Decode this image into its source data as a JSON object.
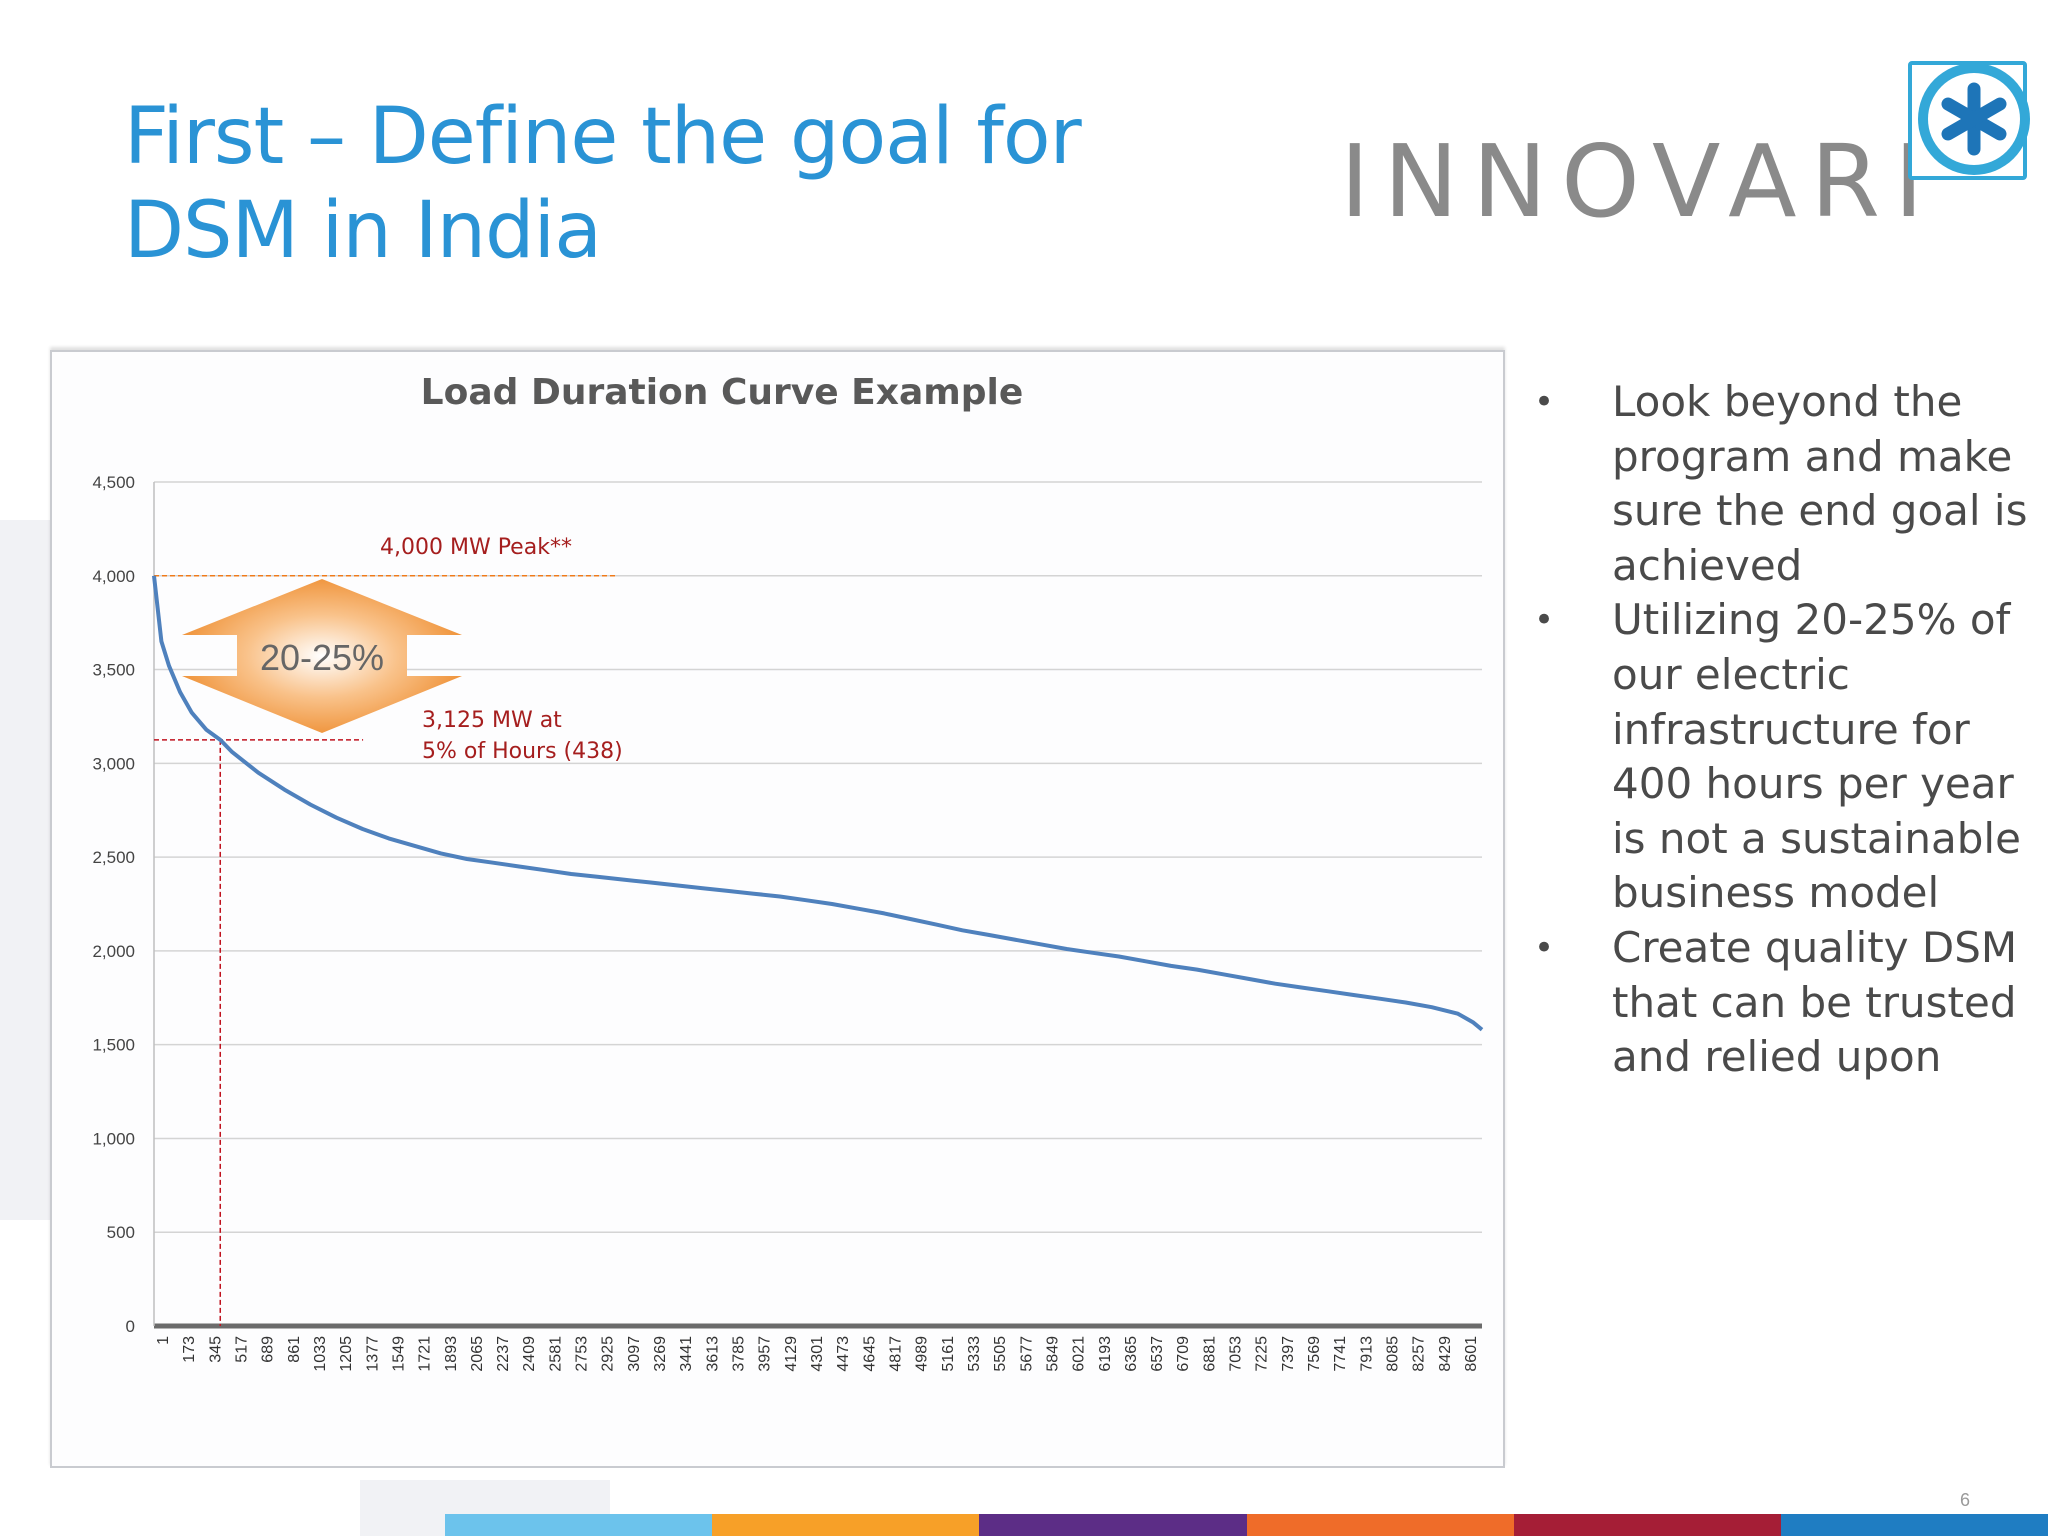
{
  "slide": {
    "title_lines": [
      "First – Define the goal for",
      "DSM in India"
    ],
    "logo_text": "INNOVARI",
    "logo_icon": "asterisk-icon",
    "page_number": "6",
    "bullets": [
      "Look beyond the program and make sure the end goal is achieved",
      "Utilizing 20-25% of our electric infrastructure for 400 hours per year is not a sustainable business model",
      "Create quality DSM that can be trusted and relied upon"
    ],
    "colors": {
      "title": "#2a93d5",
      "logo_text": "#8a8a8a",
      "logo_mark": "#33a8d8",
      "bullet_text": "#4a4a4a",
      "bottom_bar": [
        "#6cc3ec",
        "#f7a028",
        "#5c2d86",
        "#ef6c29",
        "#a51e36",
        "#1f7dc2"
      ]
    }
  },
  "chart_data": {
    "type": "line",
    "title": "Load Duration Curve Example",
    "xlabel": "",
    "ylabel": "",
    "ylim": [
      0,
      4500
    ],
    "yticks": [
      0,
      500,
      1000,
      1500,
      2000,
      2500,
      3000,
      3500,
      4000,
      4500
    ],
    "ytick_labels": [
      "0",
      "500",
      "1,000",
      "1,500",
      "2,000",
      "2,500",
      "3,000",
      "3,500",
      "4,000",
      "4,500"
    ],
    "xtick_labels": [
      "1",
      "173",
      "345",
      "517",
      "689",
      "861",
      "1033",
      "1205",
      "1377",
      "1549",
      "1721",
      "1893",
      "2065",
      "2237",
      "2409",
      "2581",
      "2753",
      "2925",
      "3097",
      "3269",
      "3441",
      "3613",
      "3785",
      "3957",
      "4129",
      "4301",
      "4473",
      "4645",
      "4817",
      "4989",
      "5161",
      "5333",
      "5505",
      "5677",
      "5849",
      "6021",
      "6193",
      "6365",
      "6537",
      "6709",
      "6881",
      "7053",
      "7225",
      "7397",
      "7569",
      "7741",
      "7913",
      "8085",
      "8257",
      "8429",
      "8601"
    ],
    "xlim": [
      1,
      8760
    ],
    "grid": "horizontal",
    "legend": "none",
    "series": [
      {
        "color": "#4f81bd",
        "x": [
          1,
          50,
          100,
          173,
          250,
          345,
          438,
          517,
          689,
          861,
          1033,
          1205,
          1377,
          1549,
          1721,
          1893,
          2065,
          2237,
          2409,
          2581,
          2753,
          2925,
          3097,
          3269,
          3441,
          3613,
          3785,
          3957,
          4129,
          4301,
          4473,
          4645,
          4817,
          4989,
          5161,
          5333,
          5505,
          5677,
          5849,
          6021,
          6193,
          6365,
          6537,
          6709,
          6881,
          7053,
          7225,
          7397,
          7569,
          7741,
          7913,
          8085,
          8257,
          8429,
          8601,
          8700,
          8760
        ],
        "y": [
          4000,
          3650,
          3520,
          3380,
          3270,
          3180,
          3125,
          3060,
          2950,
          2860,
          2780,
          2710,
          2650,
          2600,
          2560,
          2520,
          2490,
          2470,
          2450,
          2430,
          2410,
          2395,
          2380,
          2365,
          2350,
          2335,
          2320,
          2305,
          2290,
          2270,
          2250,
          2225,
          2200,
          2170,
          2140,
          2110,
          2085,
          2060,
          2035,
          2010,
          1990,
          1970,
          1945,
          1920,
          1900,
          1875,
          1850,
          1825,
          1805,
          1785,
          1765,
          1745,
          1725,
          1700,
          1665,
          1620,
          1580
        ]
      }
    ],
    "annotations": [
      {
        "text": "4,000 MW Peak**",
        "color": "#a51e1e"
      },
      {
        "text_lines": [
          "3,125 MW at",
          "5% of Hours (438)"
        ],
        "color": "#a51e1e"
      },
      {
        "text": "20-25%",
        "color": "#666666",
        "shape": "double-arrow",
        "fill": "#f08b23"
      }
    ],
    "reference_lines": [
      {
        "y": 4000,
        "style": "dashed",
        "color": "#ef7a1a"
      },
      {
        "y": 3125,
        "style": "dashed",
        "color": "#c0121e"
      },
      {
        "x": 438,
        "style": "dashed",
        "color": "#c0121e"
      }
    ]
  }
}
